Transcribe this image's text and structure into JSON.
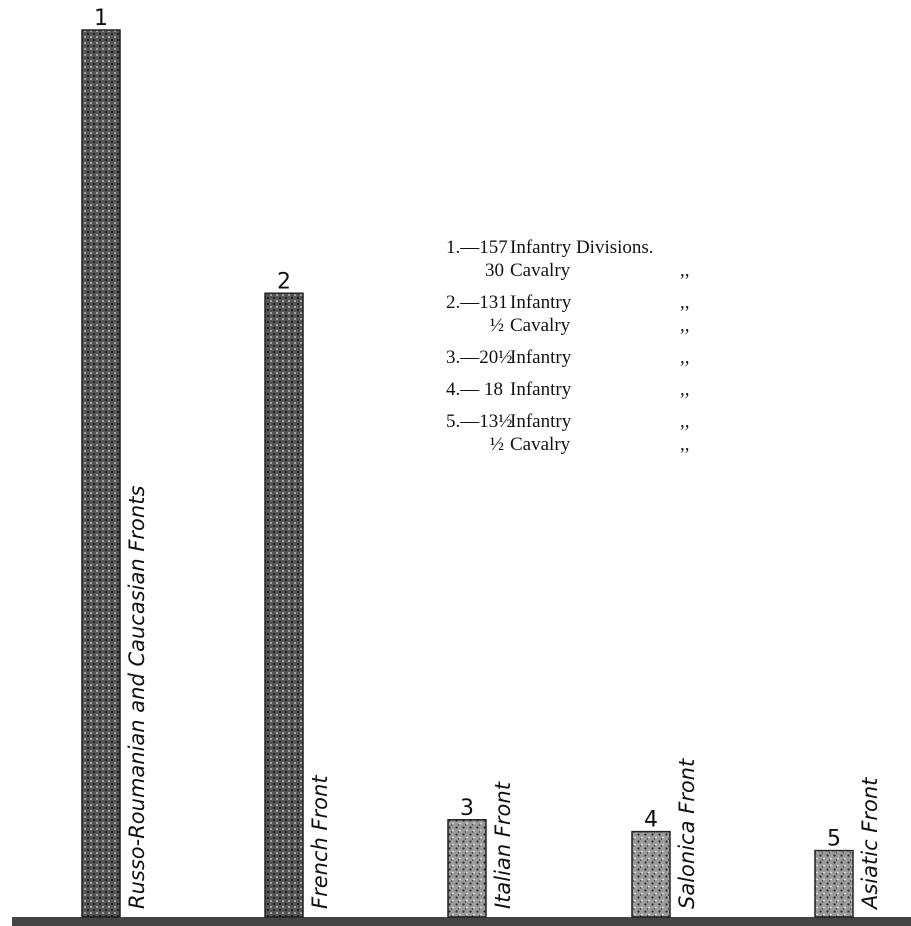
{
  "chart_data": {
    "type": "bar",
    "categories": [
      "Russo-Roumanian and Caucasian Fronts",
      "French Front",
      "Italian Front",
      "Salonica Front",
      "Asiatic Front"
    ],
    "bar_numbers": [
      "1",
      "2",
      "3",
      "4",
      "5"
    ],
    "values": [
      187,
      131.5,
      20.5,
      18,
      14
    ],
    "ylim": [
      0,
      187
    ],
    "title": "",
    "xlabel": "",
    "ylabel": "",
    "grid": false,
    "legend_position": "center",
    "legend_lines": [
      {
        "num": "1.—157",
        "text": "Infantry Divisions.",
        "ditto": ""
      },
      {
        "num": "30",
        "text": "Cavalry",
        "ditto": ",,"
      },
      {
        "num": "2.—131",
        "text": "Infantry",
        "ditto": ",,"
      },
      {
        "num": "½",
        "text": "Cavalry",
        "ditto": ",,"
      },
      {
        "num": "3.—20½",
        "text": "Infantry",
        "ditto": ",,"
      },
      {
        "num": "4.— 18",
        "text": "Infantry",
        "ditto": ",,"
      },
      {
        "num": "5.—13½",
        "text": "Infantry",
        "ditto": ",,"
      },
      {
        "num": "½",
        "text": "Cavalry",
        "ditto": ",,"
      }
    ],
    "colors": {
      "bar_fill": "#8a8a8a",
      "bar_texture": "#2a2a2a",
      "baseline": "#444444"
    }
  }
}
